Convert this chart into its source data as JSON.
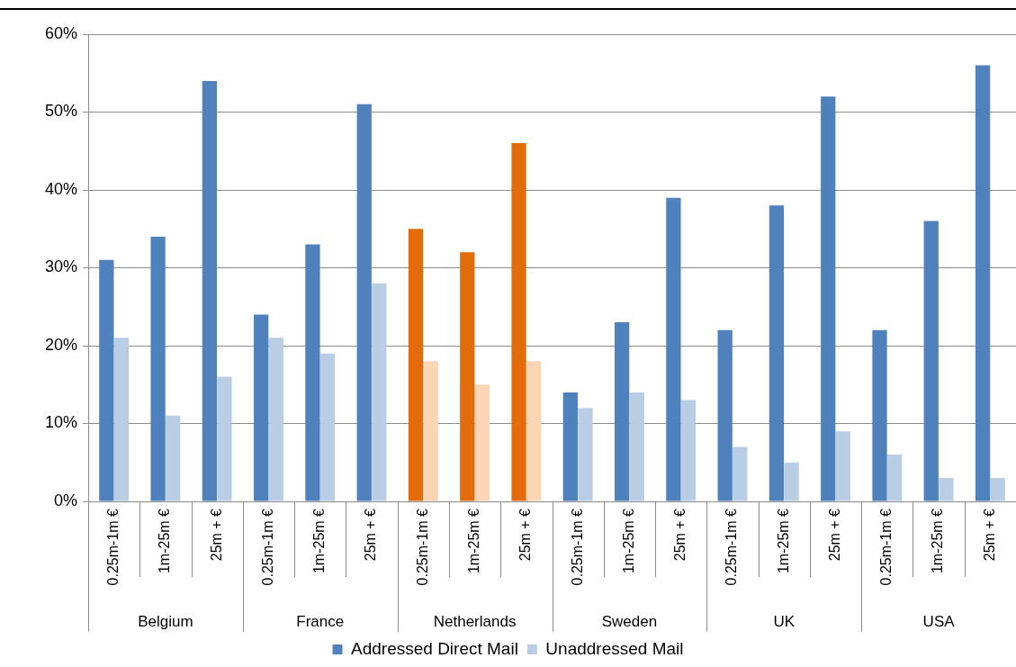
{
  "chart_data": {
    "type": "bar",
    "categories": [
      "0.25m-1m €",
      "1m-25m €",
      "25m + €",
      "0.25m-1m €",
      "1m-25m €",
      "25m + €",
      "0.25m-1m €",
      "1m-25m €",
      "25m + €",
      "0.25m-1m €",
      "1m-25m €",
      "25m + €",
      "0.25m-1m €",
      "1m-25m €",
      "25m + €",
      "0.25m-1m €",
      "1m-25m €",
      "25m + €"
    ],
    "series": [
      {
        "name": "Addressed Direct Mail",
        "color": "#4f81bd",
        "colors": [
          "#4f81bd",
          "#4f81bd",
          "#4f81bd",
          "#4f81bd",
          "#4f81bd",
          "#4f81bd",
          "#e36c0a",
          "#e36c0a",
          "#e36c0a",
          "#4f81bd",
          "#4f81bd",
          "#4f81bd",
          "#4f81bd",
          "#4f81bd",
          "#4f81bd",
          "#4f81bd",
          "#4f81bd",
          "#4f81bd"
        ],
        "values": [
          31,
          34,
          54,
          24,
          33,
          51,
          35,
          32,
          46,
          14,
          23,
          39,
          22,
          38,
          52,
          22,
          36,
          56
        ]
      },
      {
        "name": "Unaddressed Mail",
        "color": "#b9cde5",
        "colors": [
          "#b9cde5",
          "#b9cde5",
          "#b9cde5",
          "#b9cde5",
          "#b9cde5",
          "#b9cde5",
          "#fcd5b5",
          "#fcd5b5",
          "#fcd5b5",
          "#b9cde5",
          "#b9cde5",
          "#b9cde5",
          "#b9cde5",
          "#b9cde5",
          "#b9cde5",
          "#b9cde5",
          "#b9cde5",
          "#b9cde5"
        ],
        "values": [
          21,
          11,
          16,
          21,
          19,
          28,
          18,
          15,
          18,
          12,
          14,
          13,
          7,
          5,
          9,
          6,
          3,
          3
        ]
      }
    ],
    "annotations": [
      "Belgium",
      "France",
      "Netherlands",
      "Sweden",
      "UK",
      "USA"
    ],
    "ylim": [
      0,
      60
    ],
    "yticks": [
      {
        "value": 0,
        "label": "0%"
      },
      {
        "value": 10,
        "label": "10%"
      },
      {
        "value": 20,
        "label": "20%"
      },
      {
        "value": 30,
        "label": "30%"
      },
      {
        "value": 40,
        "label": "40%"
      },
      {
        "value": 50,
        "label": "50%"
      },
      {
        "value": 60,
        "label": "60%"
      }
    ],
    "grid": "y",
    "legend": "bottom"
  }
}
